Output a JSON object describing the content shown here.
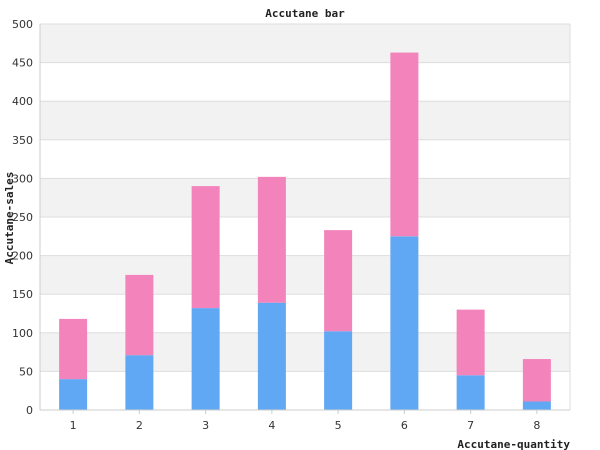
{
  "chart_data": {
    "type": "bar",
    "stacked": true,
    "title": "Accutane bar",
    "xlabel": "Accutane-quantity",
    "ylabel": "Accutane-sales",
    "categories": [
      "1",
      "2",
      "3",
      "4",
      "5",
      "6",
      "7",
      "8"
    ],
    "series": [
      {
        "values": [
          40,
          71,
          132,
          139,
          102,
          225,
          45,
          11
        ],
        "color": "#60a8f4"
      },
      {
        "values": [
          78,
          104,
          158,
          163,
          131,
          238,
          85,
          55
        ],
        "color": "#f283bb"
      }
    ],
    "ylim": [
      0,
      500
    ],
    "yticks": [
      0,
      50,
      100,
      150,
      200,
      250,
      300,
      350,
      400,
      450,
      500
    ],
    "grid": true,
    "band_color": "#f2f2f2",
    "grid_color": "#dddddd",
    "legend": "none"
  }
}
